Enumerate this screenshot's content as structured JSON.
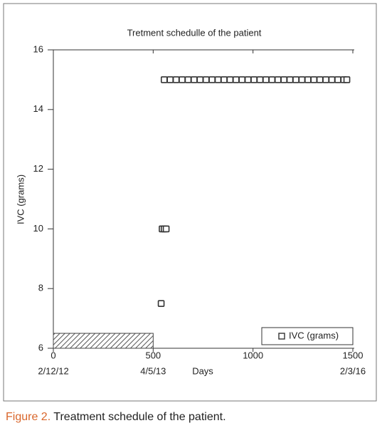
{
  "chart_data": {
    "type": "scatter",
    "title": "Tretment schedulle of the patient",
    "xlabel": "Days",
    "ylabel": "IVC (grams)",
    "xlim": [
      0,
      1500
    ],
    "xticks": [
      0,
      500,
      1000,
      1500
    ],
    "x2ticks": [
      {
        "value": 0,
        "label": "2/12/12"
      },
      {
        "value": 500,
        "label": "4/5/13"
      },
      {
        "value": 1500,
        "label": "2/3/16"
      }
    ],
    "ylim": [
      6,
      16
    ],
    "yticks": [
      6,
      8,
      10,
      12,
      14,
      16
    ],
    "legend": "lower right",
    "ranges": [
      {
        "x": [
          0,
          500
        ],
        "value": 6.5
      }
    ],
    "series": [
      {
        "name": "IVC (grams)",
        "color": "#333333",
        "x": [
          540,
          545,
          555,
          565,
          555,
          585,
          615,
          645,
          675,
          705,
          735,
          765,
          795,
          825,
          855,
          885,
          915,
          945,
          975,
          1005,
          1035,
          1065,
          1095,
          1125,
          1155,
          1185,
          1215,
          1245,
          1275,
          1305,
          1335,
          1365,
          1395,
          1425,
          1455,
          1470
        ],
        "values": [
          7.5,
          10,
          10,
          10,
          15,
          15,
          15,
          15,
          15,
          15,
          15,
          15,
          15,
          15,
          15,
          15,
          15,
          15,
          15,
          15,
          15,
          15,
          15,
          15,
          15,
          15,
          15,
          15,
          15,
          15,
          15,
          15,
          15,
          15,
          15,
          15
        ]
      }
    ]
  },
  "caption": {
    "label": "Figure 2.",
    "text": "Treatment schedule of the patient."
  }
}
